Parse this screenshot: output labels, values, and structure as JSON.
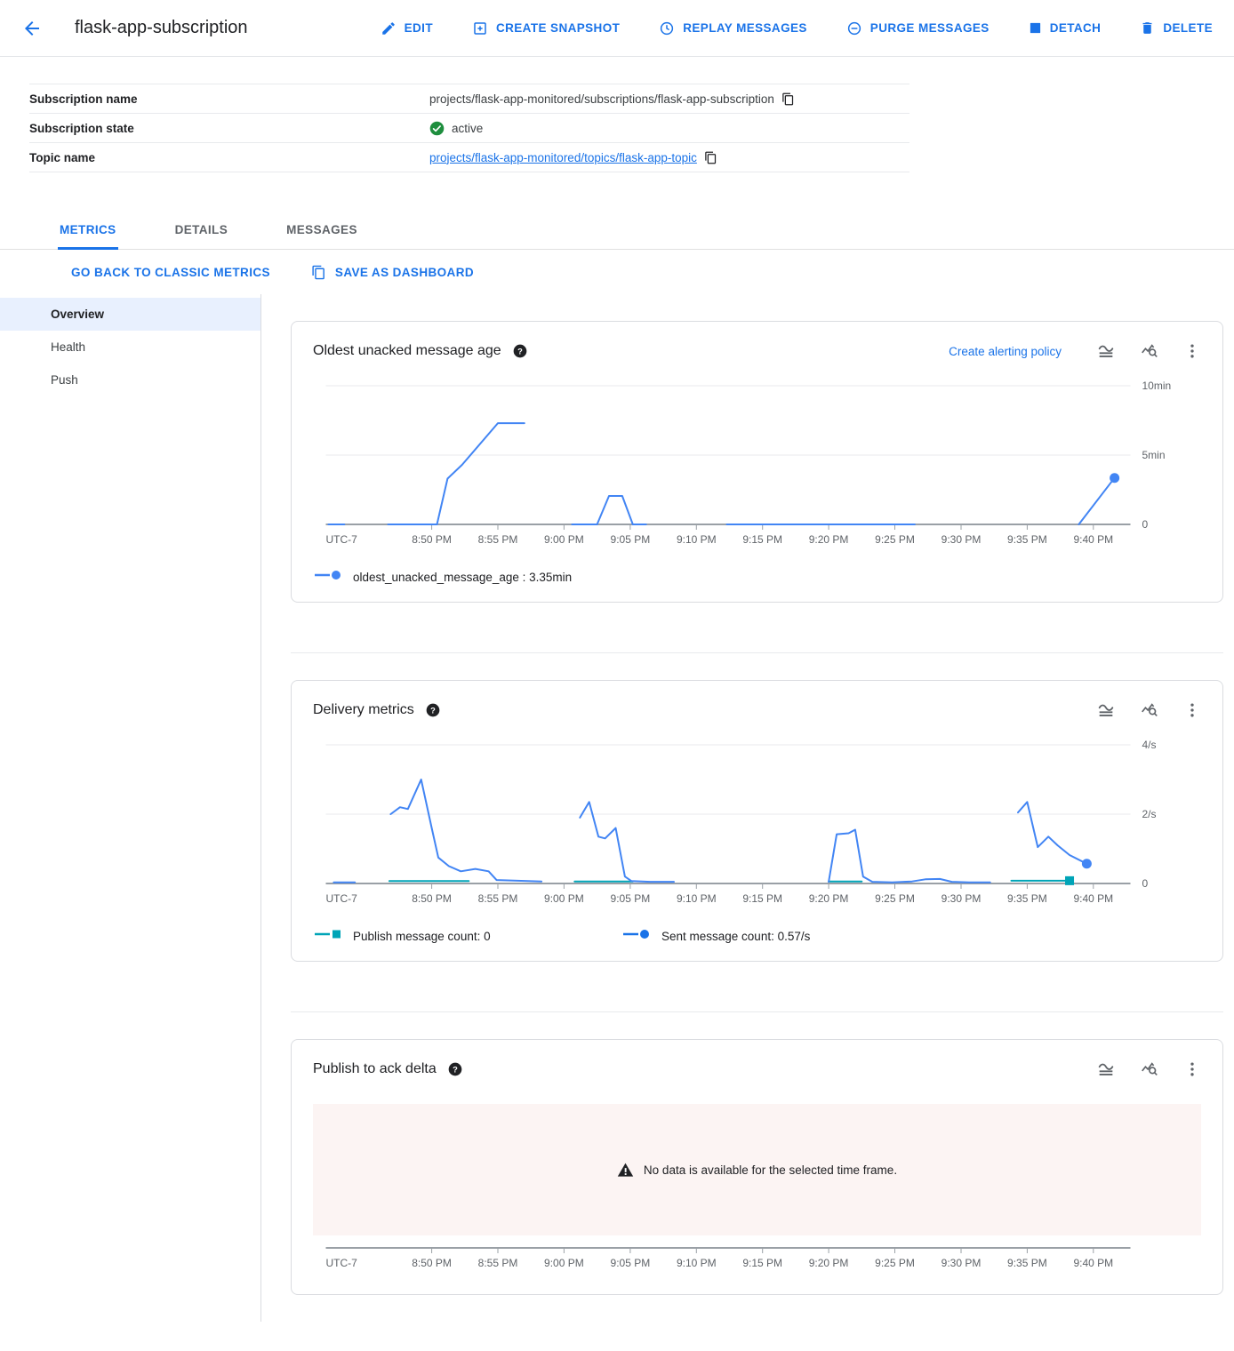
{
  "toolbar": {
    "title": "flask-app-subscription",
    "buttons": [
      {
        "label": "EDIT",
        "icon": "pencil-icon"
      },
      {
        "label": "CREATE SNAPSHOT",
        "icon": "add-box-icon"
      },
      {
        "label": "REPLAY MESSAGES",
        "icon": "clock-icon"
      },
      {
        "label": "PURGE MESSAGES",
        "icon": "minus-circle-icon"
      },
      {
        "label": "DETACH",
        "icon": "stop-square-icon"
      },
      {
        "label": "DELETE",
        "icon": "trash-icon"
      }
    ]
  },
  "info": {
    "rows": [
      {
        "label": "Subscription name",
        "value": "projects/flask-app-monitored/subscriptions/flask-app-subscription"
      },
      {
        "label": "Subscription state",
        "value": "active"
      },
      {
        "label": "Topic name",
        "value": "projects/flask-app-monitored/topics/flask-app-topic"
      }
    ]
  },
  "tabs": [
    {
      "label": "METRICS",
      "active": true
    },
    {
      "label": "DETAILS",
      "active": false
    },
    {
      "label": "MESSAGES",
      "active": false
    }
  ],
  "actions": {
    "classic": "GO BACK TO CLASSIC METRICS",
    "save": "SAVE AS DASHBOARD"
  },
  "sidebar": {
    "items": [
      {
        "label": "Overview",
        "selected": true
      },
      {
        "label": "Health",
        "selected": false
      },
      {
        "label": "Push",
        "selected": false
      }
    ]
  },
  "colors": {
    "accent": "#1a73e8",
    "line_blue": "#4285f4",
    "line_teal": "#00a4b7",
    "status_green": "#1e8e3e",
    "nodata_bg": "#fcf4f3"
  },
  "chart_data": [
    {
      "type": "line",
      "title": "Oldest unacked message age",
      "header_link": "Create alerting policy",
      "x_axis_note": "UTC-7",
      "x_domain": [
        42,
        102.8
      ],
      "x_ticks": [
        {
          "v": 50,
          "label": "8:50 PM"
        },
        {
          "v": 55,
          "label": "8:55 PM"
        },
        {
          "v": 60,
          "label": "9:00 PM"
        },
        {
          "v": 65,
          "label": "9:05 PM"
        },
        {
          "v": 70,
          "label": "9:10 PM"
        },
        {
          "v": 75,
          "label": "9:15 PM"
        },
        {
          "v": 80,
          "label": "9:20 PM"
        },
        {
          "v": 85,
          "label": "9:25 PM"
        },
        {
          "v": 90,
          "label": "9:30 PM"
        },
        {
          "v": 95,
          "label": "9:35 PM"
        },
        {
          "v": 100,
          "label": "9:40 PM"
        }
      ],
      "y_ticks": [
        {
          "v": 0,
          "label": "0"
        },
        {
          "v": 5,
          "label": "5min"
        },
        {
          "v": 10,
          "label": "10min"
        }
      ],
      "series": [
        {
          "name": "oldest_unacked_message_age",
          "color": "#4285f4",
          "segments": [
            [
              [
                42.2,
                0
              ],
              [
                43.4,
                0
              ]
            ],
            [
              [
                46.7,
                0
              ],
              [
                50.4,
                0
              ],
              [
                51.2,
                3.3
              ],
              [
                52.3,
                4.3
              ],
              [
                55.0,
                7.3
              ],
              [
                57.0,
                7.3
              ]
            ],
            [
              [
                60.6,
                0
              ],
              [
                62.5,
                0
              ],
              [
                63.4,
                2.05
              ],
              [
                64.4,
                2.05
              ],
              [
                65.2,
                0
              ],
              [
                66.2,
                0
              ]
            ],
            [
              [
                72.3,
                0
              ],
              [
                86.5,
                0
              ]
            ],
            [
              [
                98.9,
                0
              ],
              [
                101.6,
                3.35
              ]
            ]
          ],
          "end_marker": {
            "t": 101.6,
            "v": 3.35,
            "shape": "circle"
          }
        }
      ],
      "legend": [
        {
          "marker": "circle",
          "color": "#4285f4",
          "label": "oldest_unacked_message_age : 3.35min"
        }
      ]
    },
    {
      "type": "line",
      "title": "Delivery metrics",
      "header_link": null,
      "x_axis_note": "UTC-7",
      "x_domain": [
        42,
        102.8
      ],
      "x_ticks": [
        {
          "v": 50,
          "label": "8:50 PM"
        },
        {
          "v": 55,
          "label": "8:55 PM"
        },
        {
          "v": 60,
          "label": "9:00 PM"
        },
        {
          "v": 65,
          "label": "9:05 PM"
        },
        {
          "v": 70,
          "label": "9:10 PM"
        },
        {
          "v": 75,
          "label": "9:15 PM"
        },
        {
          "v": 80,
          "label": "9:20 PM"
        },
        {
          "v": 85,
          "label": "9:25 PM"
        },
        {
          "v": 90,
          "label": "9:30 PM"
        },
        {
          "v": 95,
          "label": "9:35 PM"
        },
        {
          "v": 100,
          "label": "9:40 PM"
        }
      ],
      "y_ticks": [
        {
          "v": 0,
          "label": "0"
        },
        {
          "v": 2,
          "label": "2/s"
        },
        {
          "v": 4,
          "label": "4/s"
        }
      ],
      "series": [
        {
          "name": "Publish message count",
          "color": "#00a4b7",
          "segments": [
            [
              [
                46.8,
                0.07
              ],
              [
                52.8,
                0.07
              ]
            ],
            [
              [
                60.8,
                0.06
              ],
              [
                65.2,
                0.06
              ]
            ],
            [
              [
                80.0,
                0.06
              ],
              [
                82.5,
                0.06
              ]
            ],
            [
              [
                93.8,
                0.08
              ],
              [
                98.2,
                0.08
              ]
            ]
          ],
          "end_marker": {
            "t": 98.2,
            "v": 0.08,
            "shape": "square"
          }
        },
        {
          "name": "Sent message count",
          "color": "#4285f4",
          "segments": [
            [
              [
                42.6,
                0.03
              ],
              [
                44.2,
                0.03
              ]
            ],
            [
              [
                46.9,
                2.0
              ],
              [
                47.6,
                2.2
              ],
              [
                48.2,
                2.15
              ],
              [
                49.2,
                3.0
              ],
              [
                50.0,
                1.6
              ],
              [
                50.5,
                0.75
              ],
              [
                51.3,
                0.5
              ],
              [
                52.2,
                0.35
              ],
              [
                53.3,
                0.42
              ],
              [
                54.3,
                0.35
              ],
              [
                54.9,
                0.1
              ],
              [
                56.5,
                0.08
              ],
              [
                58.3,
                0.06
              ]
            ],
            [
              [
                61.2,
                1.9
              ],
              [
                61.9,
                2.35
              ],
              [
                62.6,
                1.35
              ],
              [
                63.1,
                1.3
              ],
              [
                63.9,
                1.6
              ],
              [
                64.6,
                0.2
              ],
              [
                65.1,
                0.07
              ],
              [
                66.5,
                0.05
              ],
              [
                68.3,
                0.05
              ]
            ],
            [
              [
                80.0,
                0.05
              ],
              [
                80.6,
                1.42
              ],
              [
                81.5,
                1.45
              ],
              [
                82.0,
                1.55
              ],
              [
                82.6,
                0.2
              ],
              [
                83.3,
                0.05
              ],
              [
                84.8,
                0.03
              ],
              [
                86.3,
                0.06
              ],
              [
                87.3,
                0.12
              ],
              [
                88.4,
                0.13
              ],
              [
                89.3,
                0.05
              ],
              [
                90.6,
                0.03
              ],
              [
                92.2,
                0.03
              ]
            ],
            [
              [
                94.3,
                2.05
              ],
              [
                95.0,
                2.35
              ],
              [
                95.8,
                1.05
              ],
              [
                96.6,
                1.35
              ],
              [
                97.3,
                1.1
              ],
              [
                98.2,
                0.82
              ],
              [
                99.5,
                0.57
              ]
            ]
          ],
          "end_marker": {
            "t": 99.5,
            "v": 0.57,
            "shape": "circle"
          }
        }
      ],
      "legend": [
        {
          "marker": "square",
          "color": "#00a4b7",
          "label": "Publish message count: 0"
        },
        {
          "marker": "circle",
          "color": "#1a73e8",
          "label": "Sent message count: 0.57/s"
        }
      ]
    },
    {
      "type": "no_data",
      "title": "Publish to ack delta",
      "header_link": null,
      "message": "No data is available for the selected time frame.",
      "x_axis_note": "UTC-7",
      "x_domain": [
        42,
        102.8
      ],
      "x_ticks": [
        {
          "v": 50,
          "label": "8:50 PM"
        },
        {
          "v": 55,
          "label": "8:55 PM"
        },
        {
          "v": 60,
          "label": "9:00 PM"
        },
        {
          "v": 65,
          "label": "9:05 PM"
        },
        {
          "v": 70,
          "label": "9:10 PM"
        },
        {
          "v": 75,
          "label": "9:15 PM"
        },
        {
          "v": 80,
          "label": "9:20 PM"
        },
        {
          "v": 85,
          "label": "9:25 PM"
        },
        {
          "v": 90,
          "label": "9:30 PM"
        },
        {
          "v": 95,
          "label": "9:35 PM"
        },
        {
          "v": 100,
          "label": "9:40 PM"
        }
      ],
      "y_ticks": [],
      "series": []
    }
  ]
}
